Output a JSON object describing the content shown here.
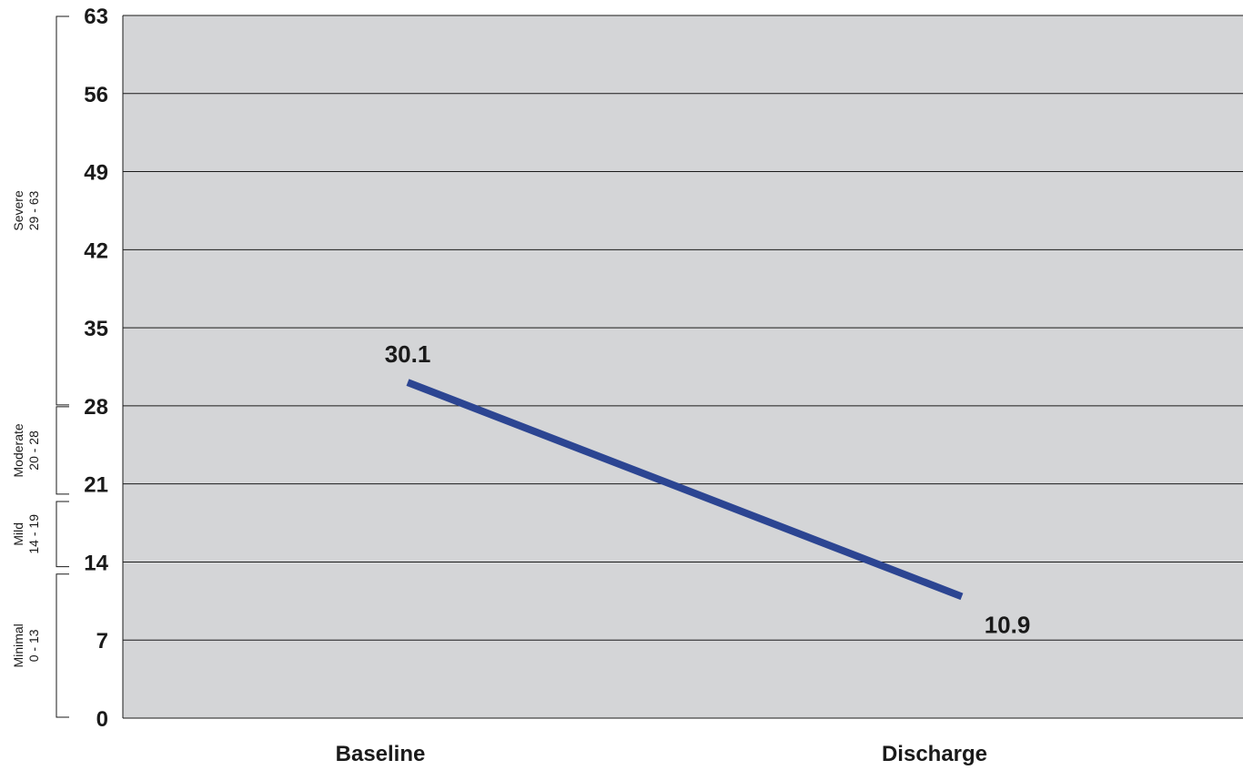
{
  "chart_data": {
    "type": "line",
    "title": "",
    "xlabel": "",
    "ylabel": "",
    "categories": [
      "Baseline",
      "Discharge"
    ],
    "series": [
      {
        "values": [
          30.1,
          10.9
        ],
        "data_labels": [
          "30.1",
          "10.9"
        ],
        "color": "#2c4592"
      }
    ],
    "ylim": [
      0,
      63
    ],
    "yticks": [
      0,
      7,
      14,
      21,
      28,
      35,
      42,
      49,
      56,
      63
    ],
    "ytick_labels": [
      "0",
      "7",
      "14",
      "21",
      "28",
      "35",
      "42",
      "49",
      "56",
      "63"
    ],
    "grid": true,
    "plot_background": "#d4d5d7",
    "severity_bands": [
      {
        "name": "Severe",
        "range_label": "29 - 63",
        "from": 28,
        "to": 63
      },
      {
        "name": "Moderate",
        "range_label": "20 - 28",
        "from": 20,
        "to": 28
      },
      {
        "name": "Mild",
        "range_label": "14 - 19",
        "from": 13.5,
        "to": 19.5
      },
      {
        "name": "Minimal",
        "range_label": "0 - 13",
        "from": 0,
        "to": 13
      }
    ]
  }
}
